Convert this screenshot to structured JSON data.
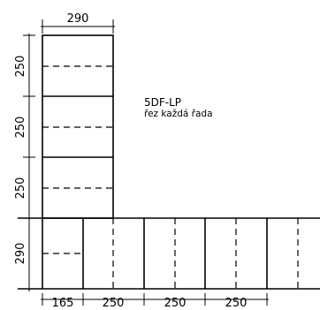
{
  "dimensions": {
    "top_width": "290",
    "left_heights": [
      "250",
      "250",
      "250",
      "290"
    ],
    "bottom_widths": [
      "165",
      "250",
      "250",
      "250"
    ]
  },
  "note": {
    "title": "5DF-LP",
    "subtitle": "řez každá řada"
  }
}
